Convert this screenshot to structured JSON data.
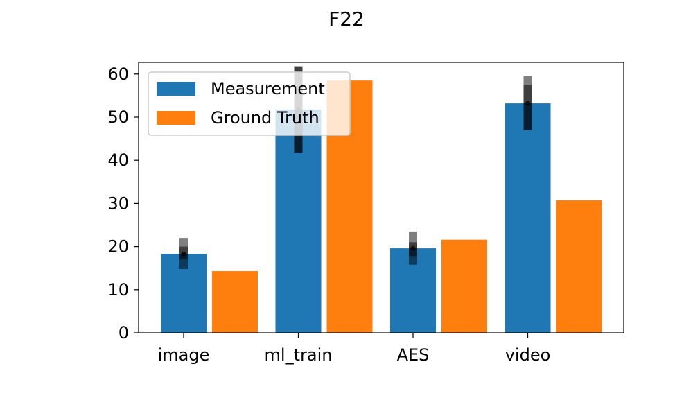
{
  "chart_data": {
    "type": "bar",
    "title": "F22",
    "xlabel": "",
    "ylabel": "",
    "categories": [
      "image",
      "ml_train",
      "AES",
      "video"
    ],
    "series": [
      {
        "name": "Measurement",
        "color": "#1f77b4",
        "values": [
          18.3,
          51.8,
          19.6,
          53.2
        ],
        "error_bars": [
          {
            "wide": [
              17.0,
              20.0
            ],
            "narrow": [
              14.8,
              22.0
            ]
          },
          {
            "wide": [
              41.8,
              61.8
            ],
            "narrow": [
              41.8,
              61.8
            ]
          },
          {
            "wide": [
              17.8,
              21.0
            ],
            "narrow": [
              15.8,
              23.5
            ]
          },
          {
            "wide": [
              47.0,
              57.5
            ],
            "narrow": [
              47.0,
              59.5
            ]
          }
        ]
      },
      {
        "name": "Ground Truth",
        "color": "#ff7f0e",
        "values": [
          14.3,
          58.5,
          21.6,
          30.7
        ]
      }
    ],
    "ylim": [
      0,
      62.7
    ],
    "yticks": [
      0,
      10,
      20,
      30,
      40,
      50,
      60
    ],
    "legend_position": "upper-left",
    "grid": false
  }
}
